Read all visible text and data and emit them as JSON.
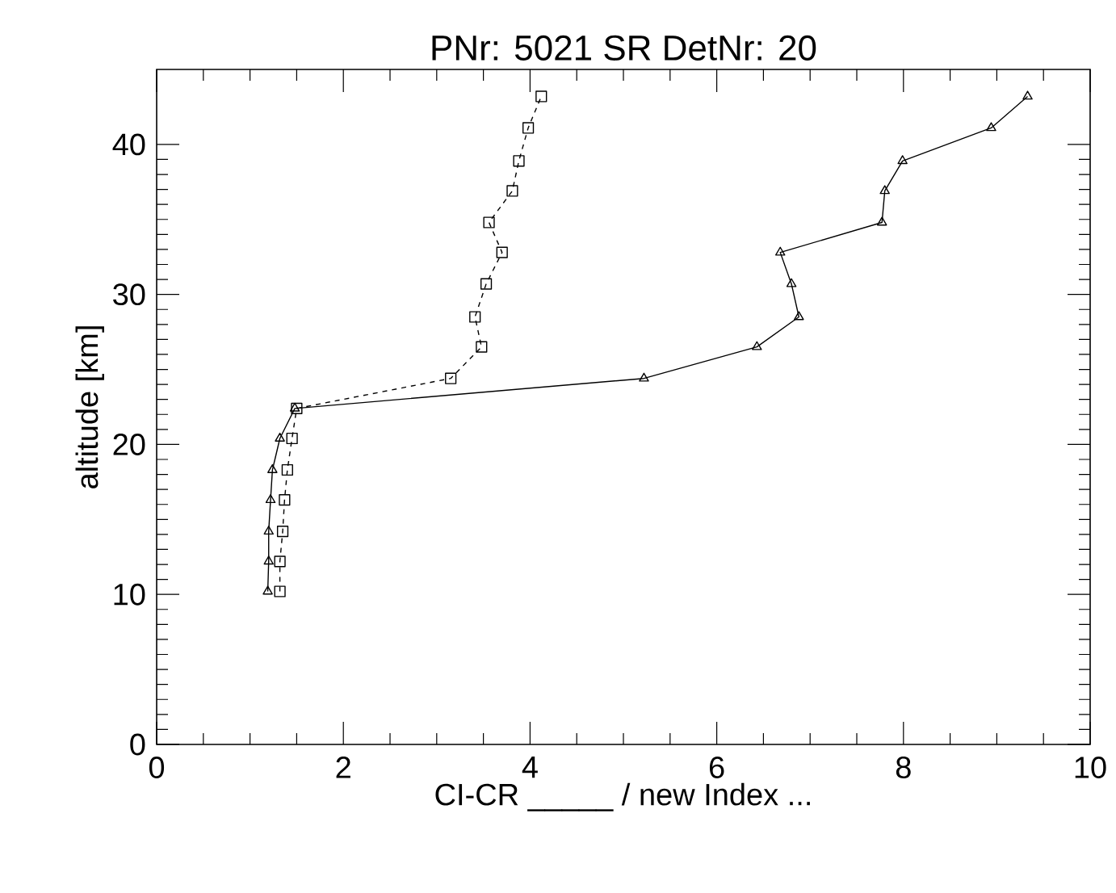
{
  "chart_data": {
    "type": "line",
    "title": "PNr: 5021   SR   DetNr: 20",
    "xlabel": "CI-CR _____ / new Index ...",
    "ylabel": "altitude [km]",
    "xlim": [
      0,
      10
    ],
    "xticks": [
      0,
      2,
      4,
      6,
      8,
      10
    ],
    "ylim": [
      0,
      45
    ],
    "yticks": [
      0,
      10,
      20,
      30,
      40
    ],
    "series": [
      {
        "color": "#000000",
        "marker": "triangle",
        "line_style": "solid",
        "x": [
          1.19,
          1.2,
          1.2,
          1.22,
          1.24,
          1.32,
          1.48,
          5.22,
          6.43,
          6.88,
          6.8,
          6.68,
          7.77,
          7.8,
          7.99,
          8.94,
          9.33
        ],
        "values": [
          10.2,
          12.2,
          14.2,
          16.3,
          18.3,
          20.4,
          22.4,
          24.4,
          26.5,
          28.5,
          30.7,
          32.8,
          34.8,
          36.9,
          38.9,
          41.1,
          43.2
        ]
      },
      {
        "color": "#000000",
        "marker": "square",
        "line_style": "dashed",
        "x": [
          1.32,
          1.32,
          1.35,
          1.37,
          1.4,
          1.45,
          1.5,
          3.15,
          3.48,
          3.41,
          3.53,
          3.7,
          3.56,
          3.81,
          3.88,
          3.98,
          4.12
        ],
        "values": [
          10.2,
          12.2,
          14.2,
          16.3,
          18.3,
          20.4,
          22.4,
          24.4,
          26.5,
          28.5,
          30.7,
          32.8,
          34.8,
          36.9,
          38.9,
          41.1,
          43.2
        ]
      }
    ]
  }
}
